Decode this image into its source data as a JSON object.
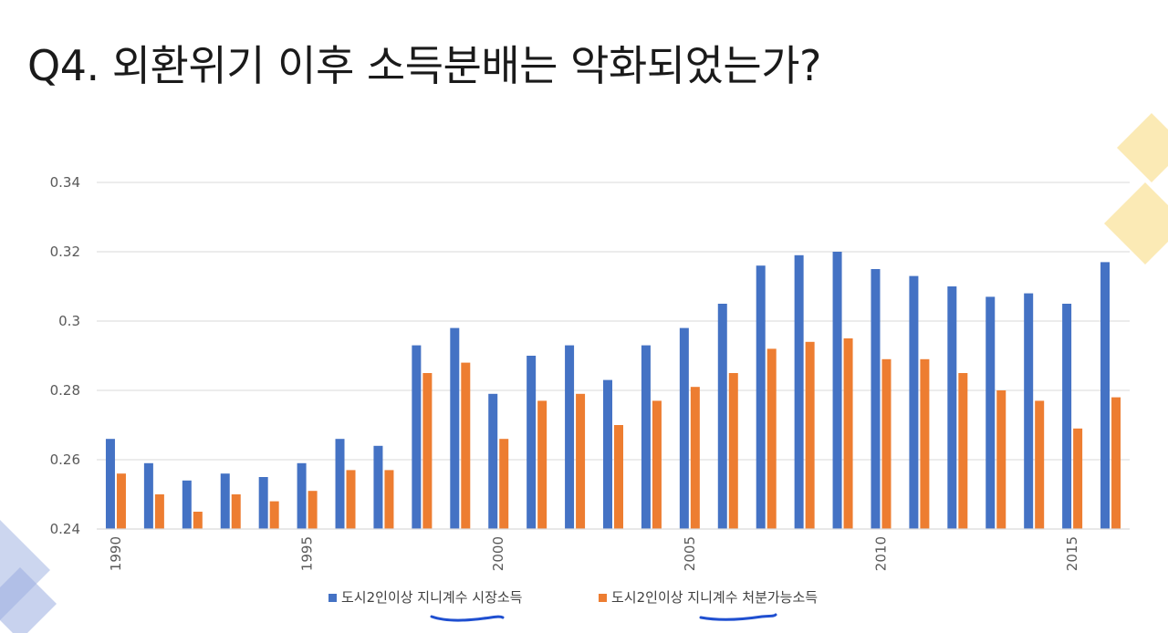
{
  "slide": {
    "title": "Q4. 외환위기 이후 소득분배는 악화되었는가?"
  },
  "colors": {
    "series_market": "#4472C4",
    "series_disposable": "#ED7D31",
    "gridline": "#D9D9D9",
    "pen_underline": "#1F4FD0",
    "deco_yellow": "#F7D878",
    "deco_blue": "#9AADE0"
  },
  "chart_data": {
    "type": "bar",
    "title": "",
    "xlabel": "",
    "ylabel": "",
    "ylim": [
      0.24,
      0.34
    ],
    "yticks": [
      "0.24",
      "0.26",
      "0.28",
      "0.3",
      "0.32",
      "0.34"
    ],
    "ytick_values": [
      0.24,
      0.26,
      0.28,
      0.3,
      0.32,
      0.34
    ],
    "grid": true,
    "legend_position": "bottom",
    "categories": [
      1990,
      1991,
      1992,
      1993,
      1994,
      1995,
      1996,
      1997,
      1998,
      1999,
      2000,
      2001,
      2002,
      2003,
      2004,
      2005,
      2006,
      2007,
      2008,
      2009,
      2010,
      2011,
      2012,
      2013,
      2014,
      2015,
      2016
    ],
    "xtick_labels": [
      "1990",
      "1995",
      "2000",
      "2005",
      "2010",
      "2015"
    ],
    "xtick_values": [
      1990,
      1995,
      2000,
      2005,
      2010,
      2015
    ],
    "series": [
      {
        "name": "도시2인이상 지니계수 시장소득",
        "values": [
          0.266,
          0.259,
          0.254,
          0.256,
          0.255,
          0.259,
          0.266,
          0.264,
          0.293,
          0.298,
          0.279,
          0.29,
          0.293,
          0.283,
          0.293,
          0.298,
          0.305,
          0.316,
          0.319,
          0.32,
          0.315,
          0.313,
          0.31,
          0.307,
          0.308,
          0.305,
          0.317
        ]
      },
      {
        "name": "도시2인이상 지니계수 처분가능소득",
        "values": [
          0.256,
          0.25,
          0.245,
          0.25,
          0.248,
          0.251,
          0.257,
          0.257,
          0.285,
          0.288,
          0.266,
          0.277,
          0.279,
          0.27,
          0.277,
          0.281,
          0.285,
          0.292,
          0.294,
          0.295,
          0.289,
          0.289,
          0.285,
          0.28,
          0.277,
          0.269,
          0.278
        ]
      }
    ]
  }
}
